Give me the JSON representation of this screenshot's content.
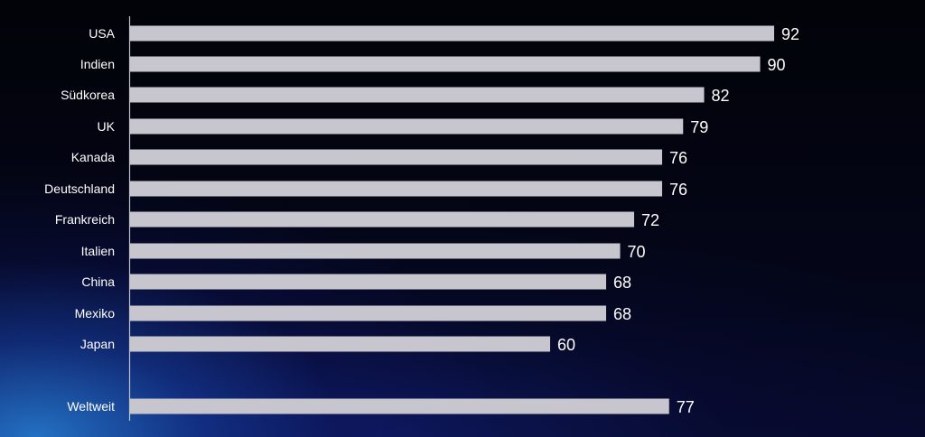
{
  "chart_data": {
    "type": "bar",
    "orientation": "horizontal",
    "categories": [
      "USA",
      "Indien",
      "Südkorea",
      "UK",
      "Kanada",
      "Deutschland",
      "Frankreich",
      "Italien",
      "China",
      "Mexiko",
      "Japan",
      "Weltweit"
    ],
    "values": [
      92,
      90,
      82,
      79,
      76,
      76,
      72,
      70,
      68,
      68,
      60,
      77
    ],
    "title": "",
    "xlabel": "",
    "ylabel": "",
    "xlim": [
      0,
      100
    ],
    "grid": false,
    "legend": "none",
    "colors": {
      "bar": "#c7c6ce",
      "text": "#ffffff",
      "axis": "#bfc0c8"
    }
  }
}
